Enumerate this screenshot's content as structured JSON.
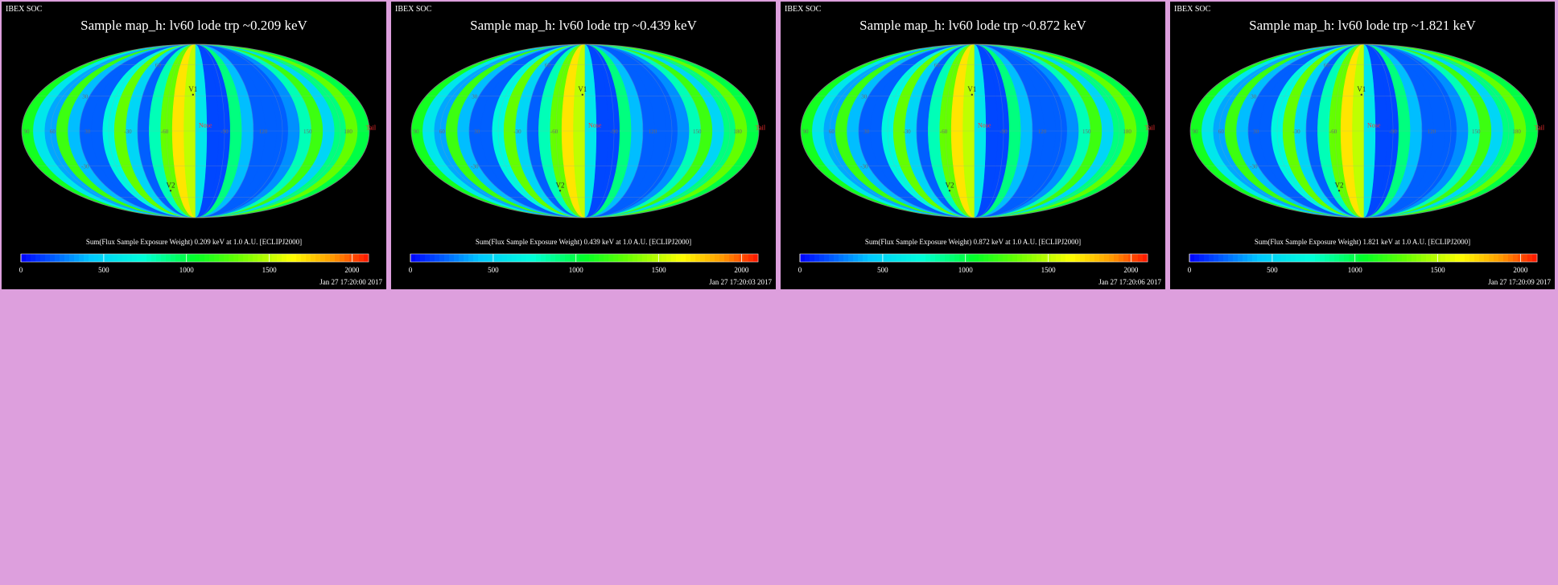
{
  "page": {
    "background": "#dd9fdd",
    "panel_background": "#000000"
  },
  "chart_data": [
    {
      "type": "heatmap",
      "projection": "mollweide",
      "brand": "IBEX SOC",
      "title": "Sample map_h: lv60 lode trp ~0.209 keV",
      "caption": "Sum(Flux Sample Exposure Weight) 0.209 keV at 1.0 A.U. [ECLIPJ2000]",
      "timestamp": "Jan 27 17:20:00 2017",
      "colorbar": {
        "min": 0,
        "max": 2100,
        "ticks": [
          0,
          500,
          1000,
          1500,
          2000
        ]
      },
      "longitude_labels": [
        "90",
        "60",
        "30",
        "-30",
        "-60",
        "-90",
        "120",
        "150",
        "180"
      ],
      "latitude_labels": [
        "-30",
        "30",
        "60"
      ],
      "markers": {
        "v1": "V1",
        "v2": "V2",
        "nose": "Nose",
        "tail": "Tail"
      },
      "stripes": [
        {
          "v": 1100
        },
        {
          "v": 600
        },
        {
          "v": 350
        },
        {
          "v": 1200
        },
        {
          "v": 400
        },
        {
          "v": 200
        },
        {
          "v": 200
        },
        {
          "v": 700
        },
        {
          "v": 1300
        },
        {
          "v": 500
        },
        {
          "v": 200
        },
        {
          "v": 800
        },
        {
          "v": 1300
        },
        {
          "v": 1700
        },
        {
          "v": 1500
        },
        {
          "v": 600
        },
        {
          "v": 150
        },
        {
          "v": 150
        },
        {
          "v": 900
        },
        {
          "v": 400
        },
        {
          "v": 200
        },
        {
          "v": 200
        },
        {
          "v": 200
        },
        {
          "v": 300
        },
        {
          "v": 800
        },
        {
          "v": 1200
        },
        {
          "v": 500
        },
        {
          "v": 900
        },
        {
          "v": 1300
        },
        {
          "v": 1000
        }
      ]
    },
    {
      "type": "heatmap",
      "projection": "mollweide",
      "brand": "IBEX SOC",
      "title": "Sample map_h: lv60 lode trp ~0.439 keV",
      "caption": "Sum(Flux Sample Exposure Weight) 0.439 keV at 1.0 A.U. [ECLIPJ2000]",
      "timestamp": "Jan 27 17:20:03 2017",
      "colorbar": {
        "min": 0,
        "max": 2100,
        "ticks": [
          0,
          500,
          1000,
          1500,
          2000
        ]
      },
      "longitude_labels": [
        "90",
        "60",
        "30",
        "-30",
        "-60",
        "-90",
        "120",
        "150",
        "180"
      ],
      "latitude_labels": [
        "-30",
        "30",
        "60"
      ],
      "markers": {
        "v1": "V1",
        "v2": "V2",
        "nose": "Nose",
        "tail": "Tail"
      },
      "stripes": [
        {
          "v": 1100
        },
        {
          "v": 600
        },
        {
          "v": 350
        },
        {
          "v": 1200
        },
        {
          "v": 400
        },
        {
          "v": 200
        },
        {
          "v": 200
        },
        {
          "v": 700
        },
        {
          "v": 1300
        },
        {
          "v": 500
        },
        {
          "v": 200
        },
        {
          "v": 800
        },
        {
          "v": 1300
        },
        {
          "v": 1700
        },
        {
          "v": 1500
        },
        {
          "v": 600
        },
        {
          "v": 150
        },
        {
          "v": 150
        },
        {
          "v": 900
        },
        {
          "v": 400
        },
        {
          "v": 200
        },
        {
          "v": 200
        },
        {
          "v": 200
        },
        {
          "v": 300
        },
        {
          "v": 800
        },
        {
          "v": 1200
        },
        {
          "v": 500
        },
        {
          "v": 900
        },
        {
          "v": 1300
        },
        {
          "v": 1000
        }
      ]
    },
    {
      "type": "heatmap",
      "projection": "mollweide",
      "brand": "IBEX SOC",
      "title": "Sample map_h: lv60 lode trp ~0.872 keV",
      "caption": "Sum(Flux Sample Exposure Weight) 0.872 keV at 1.0 A.U. [ECLIPJ2000]",
      "timestamp": "Jan 27 17:20:06 2017",
      "colorbar": {
        "min": 0,
        "max": 2100,
        "ticks": [
          0,
          500,
          1000,
          1500,
          2000
        ]
      },
      "longitude_labels": [
        "90",
        "60",
        "30",
        "-30",
        "-60",
        "-90",
        "120",
        "150",
        "180"
      ],
      "latitude_labels": [
        "-30",
        "30",
        "60"
      ],
      "markers": {
        "v1": "V1",
        "v2": "V2",
        "nose": "Nose",
        "tail": "Tail"
      },
      "stripes": [
        {
          "v": 1100
        },
        {
          "v": 600
        },
        {
          "v": 350
        },
        {
          "v": 1200
        },
        {
          "v": 400
        },
        {
          "v": 200
        },
        {
          "v": 200
        },
        {
          "v": 700
        },
        {
          "v": 1300
        },
        {
          "v": 500
        },
        {
          "v": 200
        },
        {
          "v": 800
        },
        {
          "v": 1300
        },
        {
          "v": 1700
        },
        {
          "v": 1500
        },
        {
          "v": 600
        },
        {
          "v": 150
        },
        {
          "v": 150
        },
        {
          "v": 900
        },
        {
          "v": 400
        },
        {
          "v": 200
        },
        {
          "v": 200
        },
        {
          "v": 200
        },
        {
          "v": 300
        },
        {
          "v": 800
        },
        {
          "v": 1200
        },
        {
          "v": 500
        },
        {
          "v": 900
        },
        {
          "v": 1300
        },
        {
          "v": 1000
        }
      ]
    },
    {
      "type": "heatmap",
      "projection": "mollweide",
      "brand": "IBEX SOC",
      "title": "Sample map_h: lv60 lode trp ~1.821 keV",
      "caption": "Sum(Flux Sample Exposure Weight) 1.821 keV at 1.0 A.U. [ECLIPJ2000]",
      "timestamp": "Jan 27 17:20:09 2017",
      "colorbar": {
        "min": 0,
        "max": 2100,
        "ticks": [
          0,
          500,
          1000,
          1500,
          2000
        ]
      },
      "longitude_labels": [
        "90",
        "60",
        "30",
        "-30",
        "-60",
        "-90",
        "120",
        "150",
        "180"
      ],
      "latitude_labels": [
        "-30",
        "30",
        "60"
      ],
      "markers": {
        "v1": "V1",
        "v2": "V2",
        "nose": "Nose",
        "tail": "Tail"
      },
      "stripes": [
        {
          "v": 1100
        },
        {
          "v": 600
        },
        {
          "v": 350
        },
        {
          "v": 1200
        },
        {
          "v": 400
        },
        {
          "v": 200
        },
        {
          "v": 200
        },
        {
          "v": 700
        },
        {
          "v": 1300
        },
        {
          "v": 500
        },
        {
          "v": 200
        },
        {
          "v": 800
        },
        {
          "v": 1300
        },
        {
          "v": 1700
        },
        {
          "v": 1500
        },
        {
          "v": 600
        },
        {
          "v": 150
        },
        {
          "v": 150
        },
        {
          "v": 900
        },
        {
          "v": 400
        },
        {
          "v": 200
        },
        {
          "v": 200
        },
        {
          "v": 200
        },
        {
          "v": 300
        },
        {
          "v": 800
        },
        {
          "v": 1200
        },
        {
          "v": 500
        },
        {
          "v": 900
        },
        {
          "v": 1300
        },
        {
          "v": 1000
        }
      ]
    }
  ]
}
